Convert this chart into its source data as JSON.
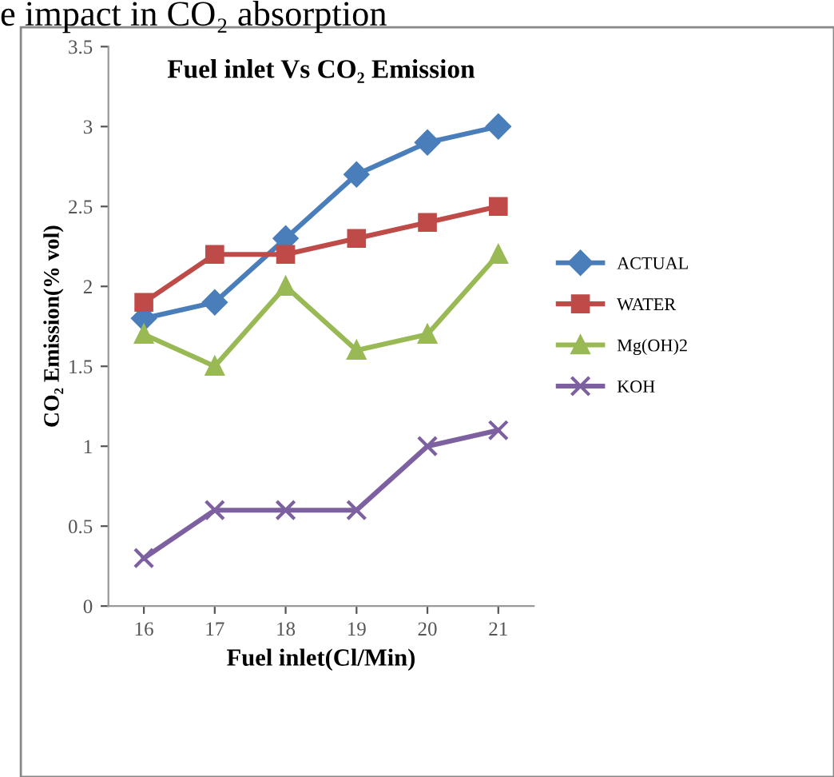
{
  "chart_data": {
    "type": "line",
    "title": "Fuel inlet Vs CO₂ Emission",
    "xlabel": "Fuel inlet(Cl/Min)",
    "ylabel": "CO₂ Emission(% vol)",
    "annotations": [
      "e impact in CO₂ absorption"
    ],
    "categories": [
      "16",
      "17",
      "18",
      "19",
      "20",
      "21"
    ],
    "series": [
      {
        "name": "ACTUAL",
        "color": "#4a7ebb",
        "marker": "diamond",
        "values": [
          1.8,
          1.9,
          2.3,
          2.7,
          2.9,
          3.0
        ]
      },
      {
        "name": "WATER",
        "color": "#be4b48",
        "marker": "square",
        "values": [
          1.9,
          2.2,
          2.2,
          2.3,
          2.4,
          2.5
        ]
      },
      {
        "name": "Mg(OH)2",
        "color": "#98b954",
        "marker": "triangle",
        "values": [
          1.7,
          1.5,
          2.0,
          1.6,
          1.7,
          2.2
        ]
      },
      {
        "name": "KOH",
        "color": "#7d60a0",
        "marker": "cross",
        "values": [
          0.3,
          0.6,
          0.6,
          0.6,
          1.0,
          1.1
        ]
      }
    ],
    "ylim": [
      0,
      3.5
    ],
    "yticks": [
      0,
      0.5,
      1,
      1.5,
      2,
      2.5,
      3,
      3.5
    ],
    "grid": false,
    "legend": "right",
    "line_style": "solid"
  }
}
